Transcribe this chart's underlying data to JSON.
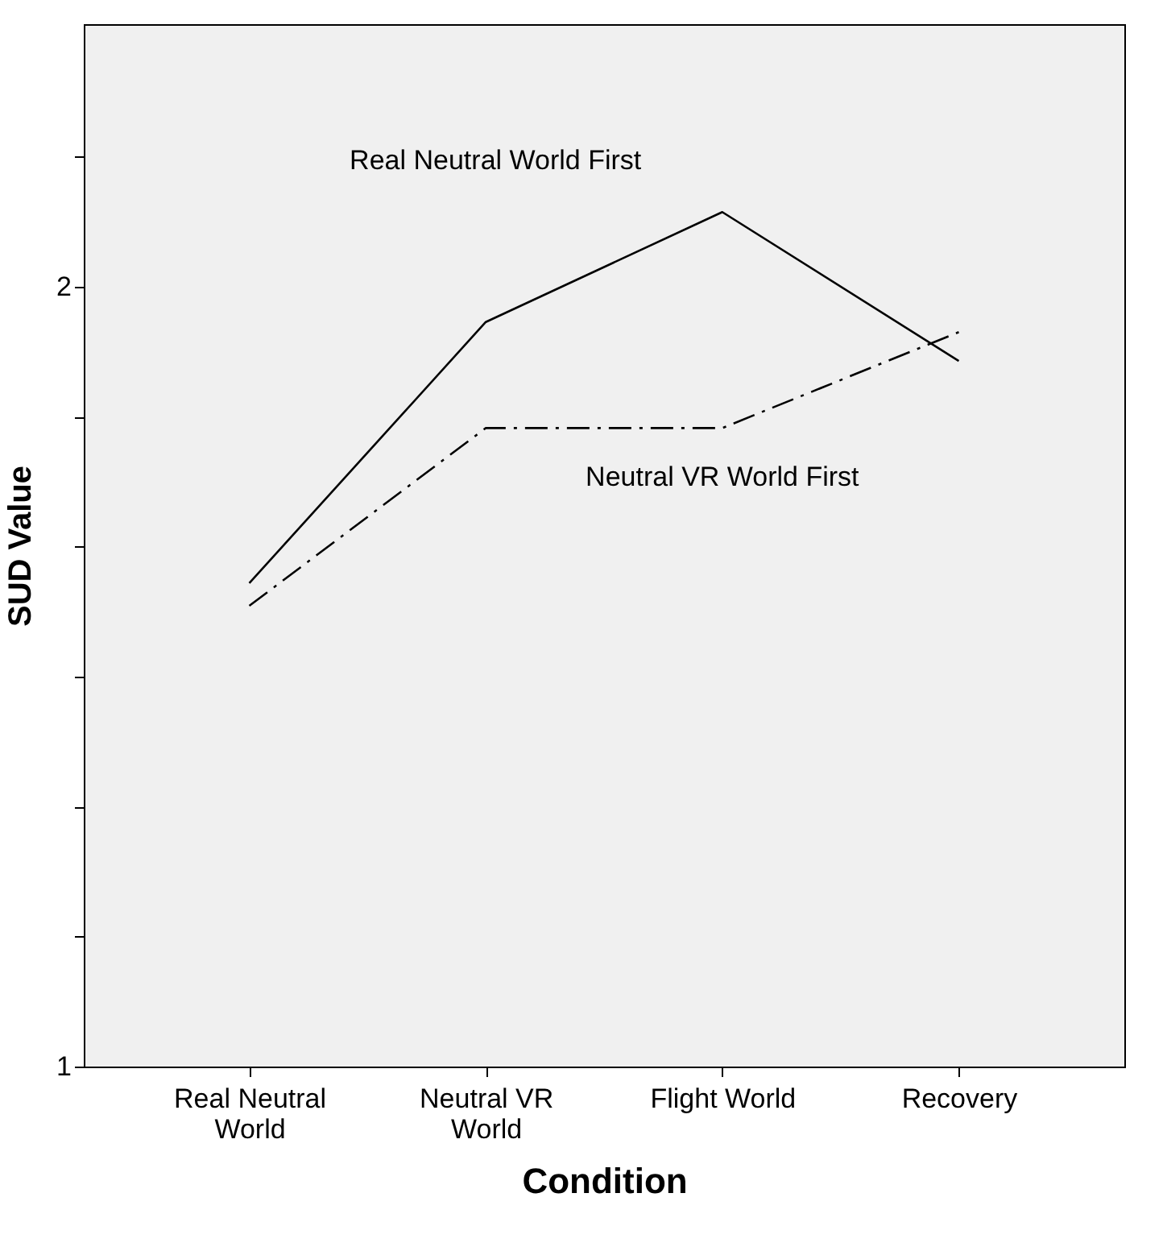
{
  "chart_data": {
    "type": "line",
    "xlabel": "Condition",
    "ylabel": "SUD Value",
    "categories": [
      "Real Neutral World",
      "Neutral VR World",
      "Flight World",
      "Recovery"
    ],
    "series": [
      {
        "name": "Real Neutral World First",
        "color": "#000000",
        "line_style": "solid",
        "values": [
          1.62,
          1.955,
          2.096,
          1.905
        ]
      },
      {
        "name": "Neutral VR World First",
        "color": "#000000",
        "line_style": "dashed",
        "values": [
          1.591,
          1.819,
          1.819,
          1.942
        ]
      }
    ],
    "ylim": [
      1,
      2.337
    ],
    "yticks": [
      1,
      {
        "value": 1.1667,
        "label": null
      },
      {
        "value": 1.3333,
        "label": null
      },
      {
        "value": 1.5,
        "label": null
      },
      {
        "value": 1.6667,
        "label": null
      },
      {
        "value": 1.8333,
        "label": null
      },
      2,
      {
        "value": 2.1667,
        "label": null
      }
    ],
    "marker": "none"
  }
}
